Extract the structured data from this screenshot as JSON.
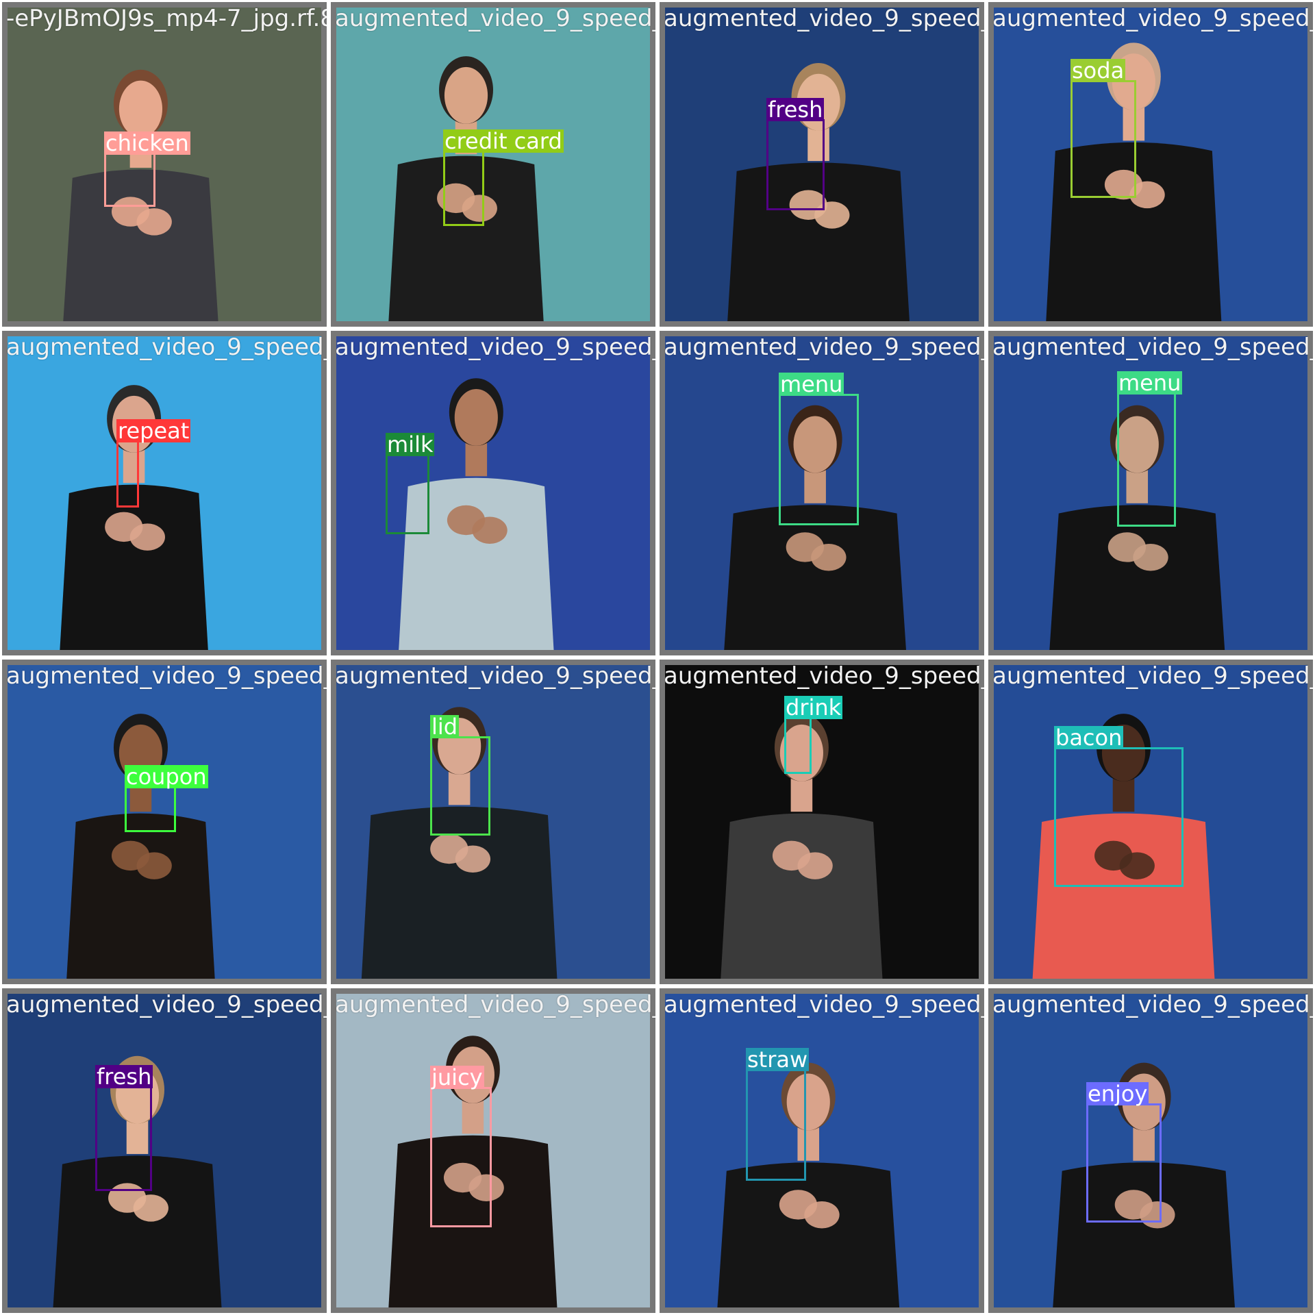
{
  "tiles": [
    {
      "filename": "-ePyJBmOJ9s_mp4-7_jpg.rf.894e0b1de0b2b39",
      "bg": "#5a6552",
      "skin": "#e7a98e",
      "shirt": "#3a3a40",
      "hair": "#7a4a32",
      "label": "chicken",
      "color": "#ff9d97"
    },
    {
      "filename": "augmented_video_9_speed_mp4-2_jpg.rf.0a6439",
      "bg": "#5ea7aa",
      "skin": "#d9a486",
      "shirt": "#1c1c1c",
      "hair": "#2a2420",
      "label": "credit card",
      "color": "#92cc17"
    },
    {
      "filename": "augmented_video_9_speed_mp4-2_jpg.rf.d80",
      "bg": "#1f3f78",
      "skin": "#e2b394",
      "shirt": "#151515",
      "hair": "#a8845c",
      "label": "fresh",
      "color": "#520085"
    },
    {
      "filename": "augmented_video_9_speed_mp4-1_jpg.rf.ad0",
      "bg": "#264f9a",
      "skin": "#e1aa8f",
      "shirt": "#141414",
      "hair": "#c9a48a",
      "label": "soda",
      "color": "#9acd32"
    },
    {
      "filename": "augmented_video_9_speed_mp4-2_jpg.rf.973",
      "bg": "#3aa6e0",
      "skin": "#dba58d",
      "shirt": "#131313",
      "hair": "#2a2a2a",
      "label": "repeat",
      "color": "#ff3838"
    },
    {
      "filename": "augmented_video_9_speed_mp4-2_jpg.rf.b2c",
      "bg": "#2a479e",
      "skin": "#b07a5c",
      "shirt": "#b6c8cf",
      "hair": "#1a1a1a",
      "label": "milk",
      "color": "#1b8a38"
    },
    {
      "filename": "augmented_video_9_speed_mp4-2_jpg.rf.b2c",
      "bg": "#25478e",
      "skin": "#c8977a",
      "shirt": "#141414",
      "hair": "#3a2418",
      "label": "menu",
      "color": "#3ddb86"
    },
    {
      "filename": "augmented_video_9_speed_mp4-18_jpg.rf.3e",
      "bg": "#244a94",
      "skin": "#caa186",
      "shirt": "#131313",
      "hair": "#3a2a22",
      "label": "menu",
      "color": "#3ddb86"
    },
    {
      "filename": "augmented_video_9_speed_mp4-2_jpg.rf.8e0",
      "bg": "#2a5aa4",
      "skin": "#8c5a3c",
      "shirt": "#1a1512",
      "hair": "#1a1a1a",
      "label": "coupon",
      "color": "#3dff3d"
    },
    {
      "filename": "augmented_video_9_speed_mp4-2_jpg.rf.21c",
      "bg": "#2b4f90",
      "skin": "#d9a891",
      "shirt": "#1a2024",
      "hair": "#3a2a20",
      "label": "lid",
      "color": "#4ce34c"
    },
    {
      "filename": "augmented_video_9_speed_mp4-2_jpg.rf.48",
      "bg": "#0d0d0d",
      "skin": "#d9a48d",
      "shirt": "#3a3a3a",
      "hair": "#5a4030",
      "label": "drink",
      "color": "#1acdb6"
    },
    {
      "filename": "augmented_video_9_speed_mp4-2_jpg.rf.48",
      "bg": "#244c96",
      "skin": "#4a2c1e",
      "shirt": "#e85a50",
      "hair": "#121212",
      "label": "bacon",
      "color": "#1ebeb7"
    },
    {
      "filename": "augmented_video_9_speed_mp4-2_jpg.rf.730",
      "bg": "#1f3f78",
      "skin": "#e3b396",
      "shirt": "#141414",
      "hair": "#a8845c",
      "label": "fresh",
      "color": "#520085"
    },
    {
      "filename": "augmented_video_9_speed_mp4-21_jpg.rf.42",
      "bg": "#a3b8c4",
      "skin": "#d3a088",
      "shirt": "#1a1412",
      "hair": "#2a1e18",
      "label": "juicy",
      "color": "#ff9aa2"
    },
    {
      "filename": "augmented_video_9_speed_mp4-21_jpg.rf.42",
      "bg": "#27509e",
      "skin": "#d9a38b",
      "shirt": "#151515",
      "hair": "#6b4a34",
      "label": "straw",
      "color": "#2296b0"
    },
    {
      "filename": "augmented_video_9_speed_mp4-15_jpg.rf.d2",
      "bg": "#25509a",
      "skin": "#cf9d85",
      "shirt": "#141414",
      "hair": "#3a2a22",
      "label": "enjoy",
      "color": "#6c6cff"
    }
  ]
}
